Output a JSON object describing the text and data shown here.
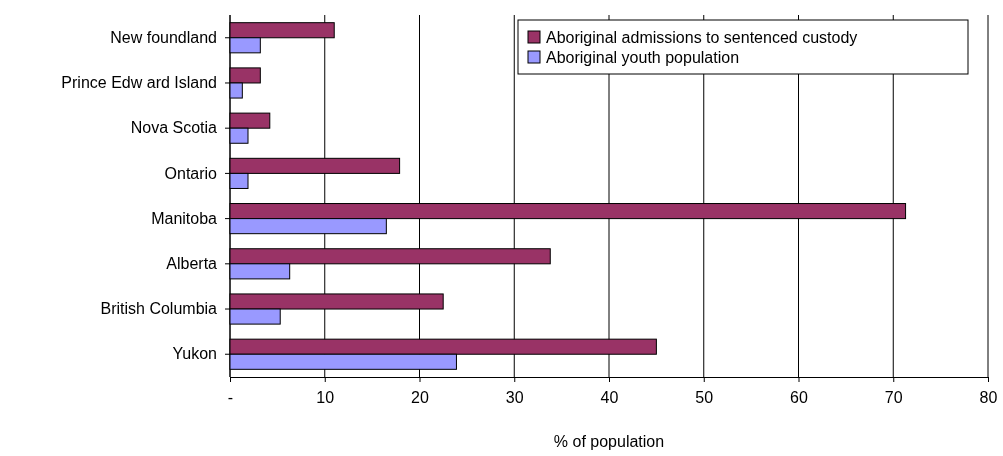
{
  "chart_data": {
    "type": "bar",
    "orientation": "horizontal",
    "xlabel": "% of population",
    "categories": [
      "New foundland",
      "Prince Edw ard Island",
      "Nova Scotia",
      "Ontario",
      "Manitoba",
      "Alberta",
      "British Columbia",
      "Yukon"
    ],
    "series": [
      {
        "name": "Aboriginal admissions to sentenced custody",
        "color": "#993366",
        "values": [
          11,
          3.2,
          4.2,
          17.9,
          71.3,
          33.8,
          22.5,
          45
        ]
      },
      {
        "name": "Aboriginal youth population",
        "color": "#9999ff",
        "values": [
          3.2,
          1.3,
          1.9,
          1.9,
          16.5,
          6.3,
          5.3,
          23.9
        ]
      }
    ],
    "xlim": [
      0,
      80
    ],
    "xticks": [
      {
        "value": 0,
        "label": "-"
      },
      10,
      20,
      30,
      40,
      50,
      60,
      70,
      80
    ],
    "grid": "x",
    "legend": "top right"
  }
}
